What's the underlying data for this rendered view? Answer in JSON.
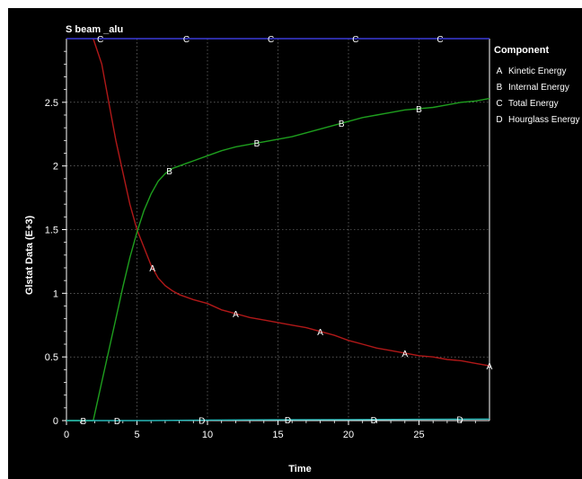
{
  "chart_data": {
    "type": "line",
    "title": "S beam _alu",
    "xlabel": "Time",
    "ylabel": "Glstat Data (E+3)",
    "xlim": [
      0,
      30
    ],
    "ylim": [
      0,
      3
    ],
    "x_ticks": [
      0,
      5,
      10,
      15,
      20,
      25
    ],
    "y_ticks": [
      0,
      0.5,
      1,
      1.5,
      2,
      2.5
    ],
    "grid": true,
    "legend_title": "Component",
    "legend_position": "right",
    "series": [
      {
        "name": "Kinetic Energy",
        "marker": "A",
        "color": "#b01818",
        "x": [
          1.9,
          2.5,
          3,
          3.5,
          4,
          4.5,
          5,
          5.5,
          6,
          6.5,
          7,
          7.5,
          8,
          9,
          10,
          11,
          12,
          13,
          14,
          15,
          16,
          17,
          18,
          19,
          20,
          21,
          22,
          23,
          24,
          25,
          26,
          27,
          28,
          29,
          30
        ],
        "y": [
          3.0,
          2.8,
          2.5,
          2.2,
          1.95,
          1.7,
          1.5,
          1.36,
          1.22,
          1.12,
          1.06,
          1.02,
          0.99,
          0.95,
          0.92,
          0.87,
          0.84,
          0.81,
          0.79,
          0.77,
          0.75,
          0.73,
          0.7,
          0.67,
          0.63,
          0.6,
          0.57,
          0.55,
          0.53,
          0.51,
          0.5,
          0.48,
          0.47,
          0.45,
          0.43
        ],
        "marker_x": [
          6.1,
          12,
          18,
          24,
          30
        ]
      },
      {
        "name": "Internal Energy",
        "marker": "B",
        "color": "#1e9e1e",
        "x": [
          0,
          1.9,
          2.2,
          2.6,
          3,
          3.5,
          4,
          4.5,
          5,
          5.5,
          6,
          6.5,
          7,
          7.5,
          8,
          8.5,
          9,
          10,
          11,
          12,
          13,
          14,
          15,
          16,
          17,
          18,
          19,
          20,
          21,
          22,
          23,
          24,
          25,
          26,
          27,
          28,
          29,
          30
        ],
        "y": [
          0,
          0,
          0.15,
          0.35,
          0.55,
          0.8,
          1.05,
          1.28,
          1.48,
          1.65,
          1.78,
          1.88,
          1.94,
          1.98,
          2.0,
          2.02,
          2.04,
          2.08,
          2.12,
          2.15,
          2.17,
          2.19,
          2.21,
          2.23,
          2.26,
          2.29,
          2.32,
          2.35,
          2.38,
          2.4,
          2.42,
          2.44,
          2.45,
          2.46,
          2.48,
          2.5,
          2.51,
          2.53
        ],
        "marker_x": [
          1.2,
          7.3,
          13.5,
          19.5,
          25
        ]
      },
      {
        "name": "Total Energy",
        "marker": "C",
        "color": "#3a3ad8",
        "x": [
          0,
          30
        ],
        "y": [
          3.0,
          3.0
        ],
        "marker_x": [
          2.4,
          8.5,
          14.5,
          20.5,
          26.5
        ]
      },
      {
        "name": "Hourglass Energy",
        "marker": "D",
        "color": "#28b8b8",
        "x": [
          0,
          5.8,
          10,
          15,
          20,
          25,
          30
        ],
        "y": [
          0,
          0,
          0.004,
          0.006,
          0.008,
          0.01,
          0.012
        ],
        "marker_x": [
          3.6,
          9.6,
          15.7,
          21.8,
          27.9
        ]
      }
    ]
  }
}
